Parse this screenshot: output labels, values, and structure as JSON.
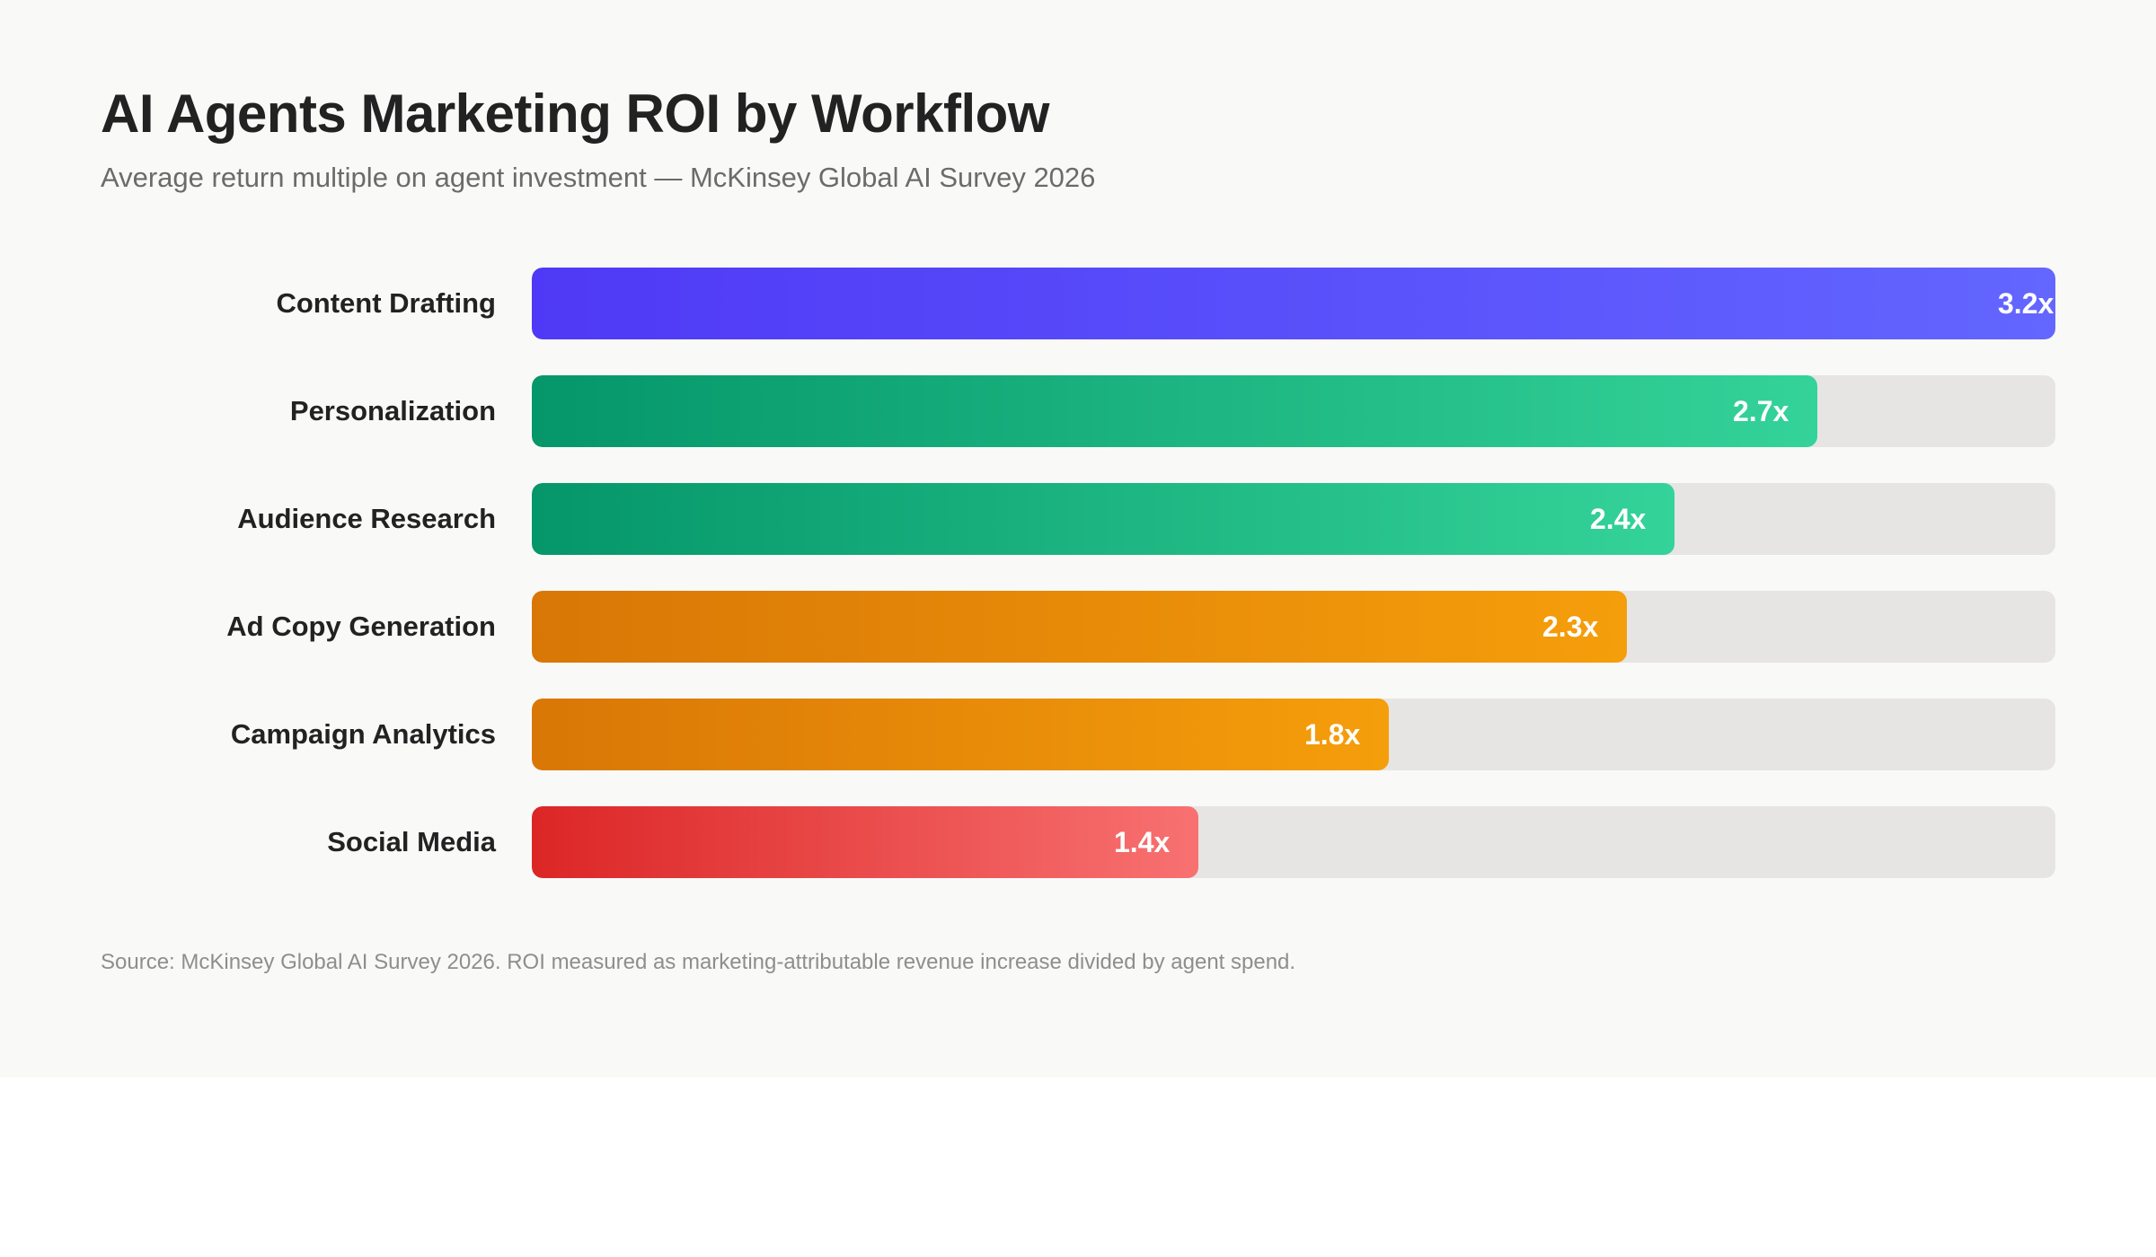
{
  "chart_data": {
    "type": "bar",
    "orientation": "horizontal",
    "title": "AI Agents Marketing ROI by Workflow",
    "subtitle": "Average return multiple on agent investment — McKinsey Global AI Survey 2026",
    "categories": [
      "Content Drafting",
      "Personalization",
      "Audience Research",
      "Ad Copy Generation",
      "Campaign Analytics",
      "Social Media"
    ],
    "values": [
      3.2,
      2.7,
      2.4,
      2.3,
      1.8,
      1.4
    ],
    "value_labels": [
      "3.2x",
      "2.7x",
      "2.4x",
      "2.3x",
      "1.8x",
      "1.4x"
    ],
    "xlim": [
      0,
      3.2
    ],
    "grid": false,
    "legend": "none",
    "bar_colors": [
      [
        "#4f39f6",
        "#6366ff"
      ],
      [
        "#059669",
        "#34d399"
      ],
      [
        "#059669",
        "#34d399"
      ],
      [
        "#d97706",
        "#f59e0b"
      ],
      [
        "#d97706",
        "#f59e0b"
      ],
      [
        "#dc2626",
        "#f87171"
      ]
    ],
    "track_color": "#e6e5e3",
    "source": "Source: McKinsey Global AI Survey 2026. ROI measured as marketing-attributable revenue increase divided by agent spend."
  }
}
